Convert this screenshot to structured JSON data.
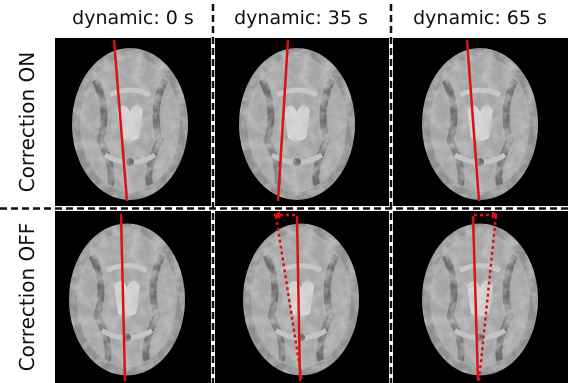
{
  "columns": [
    {
      "title": "dynamic: 0 s"
    },
    {
      "title": "dynamic: 35 s"
    },
    {
      "title": "dynamic: 65 s"
    }
  ],
  "rows": [
    {
      "label": "Correction ON"
    },
    {
      "label": "Correction OFF"
    }
  ]
}
